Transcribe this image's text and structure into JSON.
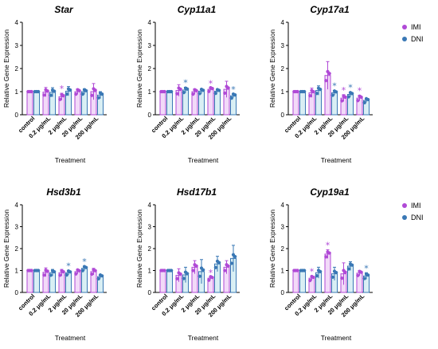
{
  "colors": {
    "IMI": "#b04ad6",
    "DNI": "#3a78b5",
    "IMI_fill": "#f2daf8",
    "DNI_fill": "#d9eff4"
  },
  "legend": [
    {
      "name": "IMI"
    },
    {
      "name": "DNI"
    }
  ],
  "chart_data": [
    {
      "type": "bar",
      "title": "Star",
      "categories": [
        "control",
        "0.2 μg/mL",
        "2 μg/mL",
        "20 μg/mL",
        "200 μg/mL"
      ],
      "xlabel": "Treatment",
      "ylabel": "Relative Gene Expression",
      "ylim": [
        0,
        4
      ],
      "yticks": [
        0,
        1,
        2,
        3,
        4
      ],
      "series": [
        {
          "name": "IMI",
          "values": [
            1.0,
            0.98,
            0.78,
            1.0,
            1.0
          ],
          "errors": [
            0.02,
            0.2,
            0.15,
            0.12,
            0.35
          ],
          "significant": [
            false,
            false,
            true,
            false,
            false
          ]
        },
        {
          "name": "DNI",
          "values": [
            1.0,
            0.97,
            1.02,
            1.0,
            0.85
          ],
          "errors": [
            0.02,
            0.2,
            0.2,
            0.12,
            0.15
          ],
          "significant": [
            false,
            false,
            false,
            false,
            false
          ]
        }
      ]
    },
    {
      "type": "bar",
      "title": "Cyp11a1",
      "categories": [
        "control",
        "0.2 μg/mL",
        "2 μg/mL",
        "20 μg/mL",
        "200 μg/mL"
      ],
      "xlabel": "Treatment",
      "ylabel": "Relative Gene Expression",
      "ylim": [
        0,
        4
      ],
      "yticks": [
        0,
        1,
        2,
        3,
        4
      ],
      "series": [
        {
          "name": "IMI",
          "values": [
            1.0,
            1.05,
            1.0,
            1.1,
            1.1
          ],
          "errors": [
            0.02,
            0.25,
            0.12,
            0.05,
            0.35
          ],
          "significant": [
            false,
            false,
            false,
            true,
            false
          ]
        },
        {
          "name": "DNI",
          "values": [
            1.0,
            1.07,
            1.02,
            1.02,
            0.82
          ],
          "errors": [
            0.02,
            0.12,
            0.1,
            0.05,
            0.08
          ],
          "significant": [
            false,
            true,
            false,
            false,
            true
          ]
        }
      ]
    },
    {
      "type": "bar",
      "title": "Cyp17a1",
      "categories": [
        "control",
        "0.2 μg/mL",
        "2 μg/mL",
        "20 μg/mL",
        "200 μg/mL"
      ],
      "xlabel": "Treatment",
      "ylabel": "Relative Gene Expression",
      "ylim": [
        0,
        4
      ],
      "yticks": [
        0,
        1,
        2,
        3,
        4
      ],
      "series": [
        {
          "name": "IMI",
          "values": [
            1.0,
            0.95,
            1.7,
            0.72,
            0.72
          ],
          "errors": [
            0.02,
            0.2,
            0.6,
            0.15,
            0.12
          ],
          "significant": [
            false,
            false,
            false,
            true,
            true
          ]
        },
        {
          "name": "DNI",
          "values": [
            1.0,
            1.05,
            0.95,
            0.88,
            0.62
          ],
          "errors": [
            0.02,
            0.2,
            0.1,
            0.1,
            0.08
          ],
          "significant": [
            false,
            false,
            true,
            true,
            false
          ]
        }
      ]
    },
    {
      "type": "bar",
      "title": "Hsd3b1",
      "categories": [
        "control",
        "0.2 μg/mL",
        "2 μg/mL",
        "20 μg/mL",
        "200 μg/mL"
      ],
      "xlabel": "Treatment",
      "ylabel": "Relative Gene Expression",
      "ylim": [
        0,
        4
      ],
      "yticks": [
        0,
        1,
        2,
        3,
        4
      ],
      "series": [
        {
          "name": "IMI",
          "values": [
            1.0,
            0.92,
            0.9,
            0.95,
            0.95
          ],
          "errors": [
            0.02,
            0.2,
            0.15,
            0.1,
            0.15
          ],
          "significant": [
            false,
            false,
            false,
            false,
            false
          ]
        },
        {
          "name": "DNI",
          "values": [
            1.0,
            0.9,
            0.9,
            1.1,
            0.72
          ],
          "errors": [
            0.02,
            0.15,
            0.1,
            0.1,
            0.08
          ],
          "significant": [
            false,
            false,
            true,
            true,
            false
          ]
        }
      ]
    },
    {
      "type": "bar",
      "title": "Hsd17b1",
      "categories": [
        "control",
        "0.2 μg/mL",
        "2 μg/mL",
        "20 μg/mL",
        "200 μg/mL"
      ],
      "xlabel": "Treatment",
      "ylabel": "Relative Gene Expression",
      "ylim": [
        0,
        4
      ],
      "yticks": [
        0,
        1,
        2,
        3,
        4
      ],
      "series": [
        {
          "name": "IMI",
          "values": [
            1.0,
            0.78,
            1.15,
            0.65,
            1.15
          ],
          "errors": [
            0.02,
            0.3,
            0.3,
            0.05,
            0.3
          ],
          "significant": [
            false,
            false,
            false,
            true,
            false
          ]
        },
        {
          "name": "DNI",
          "values": [
            1.0,
            0.8,
            0.95,
            1.3,
            1.55
          ],
          "errors": [
            0.02,
            0.35,
            0.55,
            0.35,
            0.6
          ],
          "significant": [
            false,
            false,
            false,
            false,
            false
          ]
        }
      ]
    },
    {
      "type": "bar",
      "title": "Cyp19a1",
      "categories": [
        "control",
        "0.2 μg/mL",
        "2 μg/mL",
        "20 μg/mL",
        "200 μg/mL"
      ],
      "xlabel": "Treatment",
      "ylabel": "Relative Gene Expression",
      "ylim": [
        0,
        4
      ],
      "yticks": [
        0,
        1,
        2,
        3,
        4
      ],
      "series": [
        {
          "name": "IMI",
          "values": [
            1.0,
            0.65,
            1.75,
            0.85,
            0.88
          ],
          "errors": [
            0.02,
            0.1,
            0.2,
            0.5,
            0.12
          ],
          "significant": [
            false,
            true,
            true,
            false,
            false
          ]
        },
        {
          "name": "DNI",
          "values": [
            1.0,
            0.9,
            0.85,
            1.2,
            0.75
          ],
          "errors": [
            0.02,
            0.25,
            0.3,
            0.2,
            0.15
          ],
          "significant": [
            false,
            false,
            false,
            false,
            true
          ]
        }
      ]
    }
  ]
}
